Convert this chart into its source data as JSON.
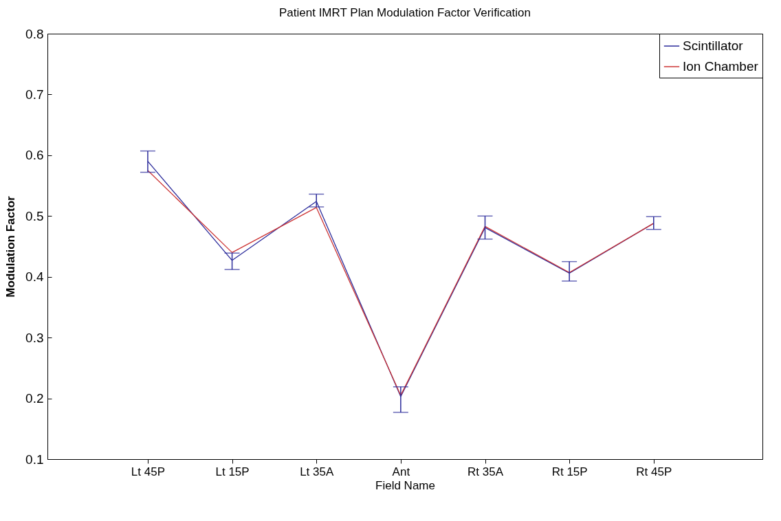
{
  "chart_data": {
    "type": "line",
    "title": "Patient IMRT Plan Modulation Factor Verification",
    "xlabel": "Field Name",
    "ylabel": "Modulation Factor",
    "categories": [
      "Lt 45P",
      "Lt 15P",
      "Lt 35A",
      "Ant",
      "Rt 35A",
      "Rt 15P",
      "Rt 45P"
    ],
    "series": [
      {
        "name": "Scintillator",
        "color": "#2a2a9a",
        "values": [
          0.59,
          0.427,
          0.524,
          0.203,
          0.481,
          0.406,
          0.488
        ],
        "errors": [
          [
            0.572,
            0.607
          ],
          [
            0.412,
            0.439
          ],
          [
            0.515,
            0.536
          ],
          [
            0.177,
            0.219
          ],
          [
            0.462,
            0.5
          ],
          [
            0.393,
            0.425
          ],
          [
            0.478,
            0.499
          ]
        ]
      },
      {
        "name": "Ion Chamber",
        "color": "#cc3333",
        "values": [
          0.575,
          0.44,
          0.514,
          0.205,
          0.483,
          0.407,
          0.488
        ]
      }
    ],
    "ylim": [
      0.1,
      0.8
    ],
    "yticks": [
      0.1,
      0.2,
      0.3,
      0.4,
      0.5,
      0.6,
      0.7,
      0.8
    ],
    "legend": "top right",
    "line_style": "solid"
  }
}
